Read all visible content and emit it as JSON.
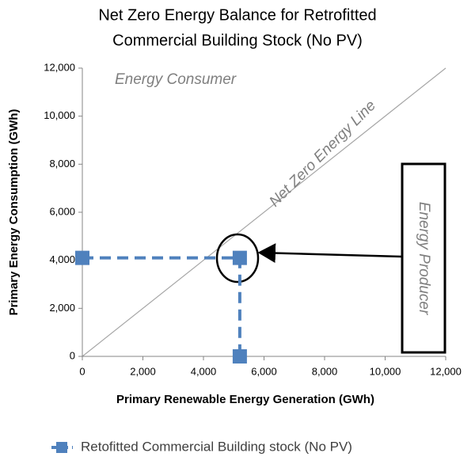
{
  "chart_data": {
    "type": "scatter",
    "title": [
      "Net Zero Energy Balance for Retrofitted",
      "Commercial Building Stock (No PV)"
    ],
    "x_label": "Primary Renewable Energy Generation (GWh)",
    "y_label": "Primary Energy Consumption (GWh)",
    "xlim": [
      0,
      12000
    ],
    "ylim": [
      0,
      12000
    ],
    "xticks": [
      0,
      {
        "value": 2000,
        "label": "2,000"
      },
      {
        "value": 4000,
        "label": "4,000"
      },
      {
        "value": 6000,
        "label": "6,000"
      },
      {
        "value": 8000,
        "label": "8,000"
      },
      {
        "value": 10000,
        "label": "10,000"
      },
      {
        "value": 12000,
        "label": "12,000"
      }
    ],
    "yticks": [
      0,
      {
        "value": 2000,
        "label": "2,000"
      },
      {
        "value": 4000,
        "label": "4,000"
      },
      {
        "value": 6000,
        "label": "6,000"
      },
      {
        "value": 8000,
        "label": "8,000"
      },
      {
        "value": 10000,
        "label": "10,000"
      },
      {
        "value": 12000,
        "label": "12,000"
      }
    ],
    "grid": false,
    "series": [
      {
        "name": "Retofitted Commercial Building stock (No PV)",
        "color": "#4f81bd",
        "x": [
          0,
          5200,
          5200
        ],
        "values": [
          4100,
          4100,
          0
        ]
      }
    ],
    "reference_line": {
      "label": "Net Zero Energy Line",
      "x": [
        0,
        12000
      ],
      "y": [
        0,
        12000
      ],
      "color": "#a6a6a6"
    },
    "annotations": [
      "Energy Consumer",
      "Energy Producer"
    ]
  }
}
